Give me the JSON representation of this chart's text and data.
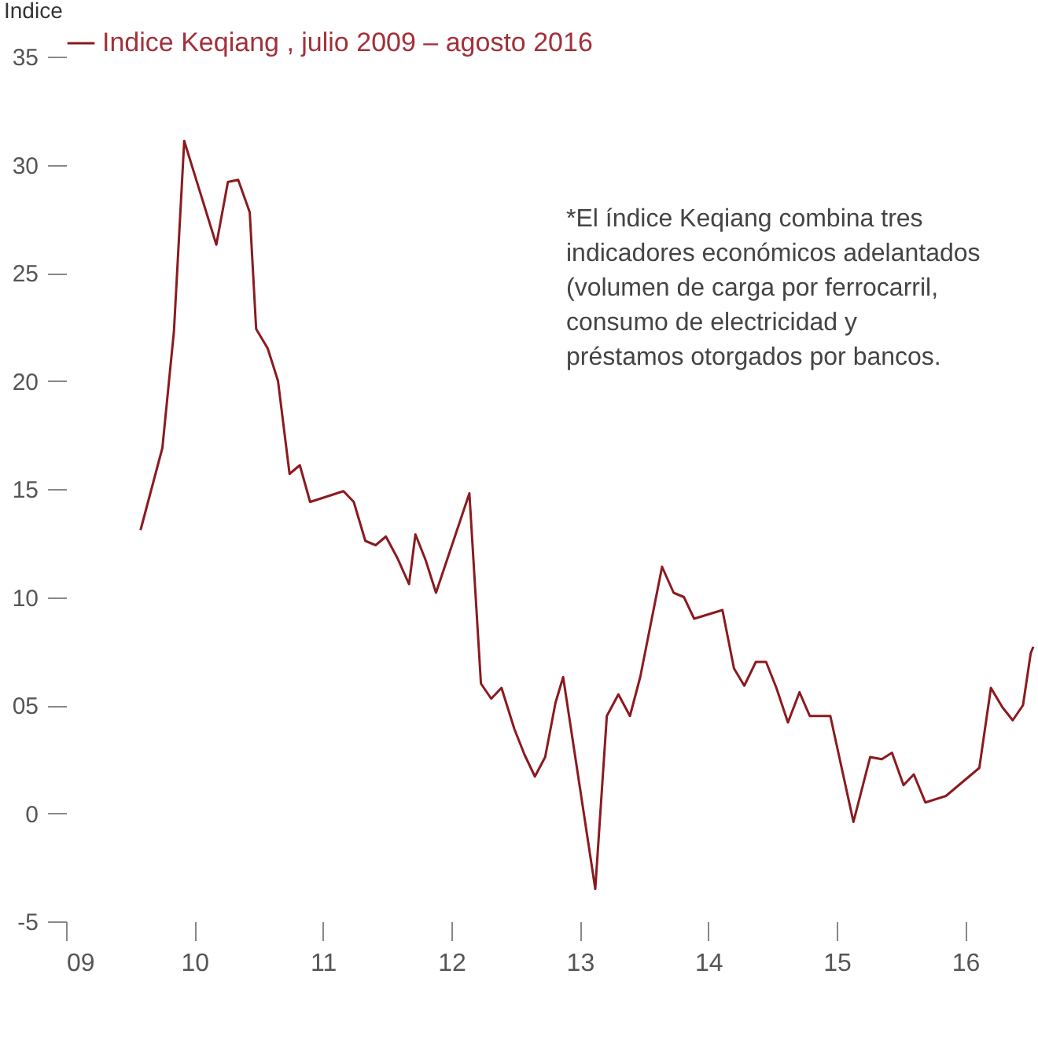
{
  "chart_data": {
    "type": "line",
    "ylabel": "Indice",
    "annotations": [
      "*El índice Keqiang combina tres\nindicadores económicos adelantados\n(volumen de carga por ferrocarril,\nconsumo de electricidad y\npréstamos otorgados por bancos."
    ],
    "xlim": [
      2009,
      2016.53
    ],
    "ylim": [
      -5,
      35
    ],
    "xticks": [
      {
        "value": 2009,
        "label": "09"
      },
      {
        "value": 2010,
        "label": "10"
      },
      {
        "value": 2011,
        "label": "11"
      },
      {
        "value": 2012,
        "label": "12"
      },
      {
        "value": 2013,
        "label": "13"
      },
      {
        "value": 2014,
        "label": "14"
      },
      {
        "value": 2015,
        "label": "15"
      },
      {
        "value": 2016,
        "label": "16"
      }
    ],
    "yticks": [
      -5,
      0,
      {
        "value": 5,
        "label": "05"
      },
      10,
      15,
      20,
      25,
      30,
      35
    ],
    "grid": false,
    "legend": "top",
    "marker": "none",
    "line_style": "solid",
    "series": [
      {
        "name": "Indice Keqiang , julio 2009 – agosto 2016",
        "color": "#8b1a1f",
        "x": [
          2009.58,
          2009.75,
          2009.84,
          2009.92,
          2010.17,
          2010.26,
          2010.34,
          2010.43,
          2010.48,
          2010.57,
          2010.65,
          2010.74,
          2010.82,
          2010.9,
          2011.16,
          2011.24,
          2011.33,
          2011.41,
          2011.49,
          2011.58,
          2011.67,
          2011.72,
          2011.8,
          2011.88,
          2012.14,
          2012.23,
          2012.31,
          2012.39,
          2012.49,
          2012.57,
          2012.65,
          2012.73,
          2012.81,
          2012.87,
          2013.12,
          2013.21,
          2013.3,
          2013.39,
          2013.47,
          2013.64,
          2013.73,
          2013.81,
          2013.89,
          2014.11,
          2014.2,
          2014.28,
          2014.37,
          2014.45,
          2014.53,
          2014.62,
          2014.71,
          2014.79,
          2014.95,
          2015.13,
          2015.26,
          2015.35,
          2015.43,
          2015.52,
          2015.6,
          2015.69,
          2015.85,
          2016.11,
          2016.2,
          2016.29,
          2016.37,
          2016.45,
          2016.51,
          2016.53
        ],
        "values": [
          13.1,
          16.9,
          22.3,
          31.1,
          26.3,
          29.2,
          29.3,
          27.8,
          22.4,
          21.5,
          20.0,
          15.7,
          16.1,
          14.4,
          14.9,
          14.4,
          12.6,
          12.4,
          12.8,
          11.8,
          10.6,
          12.9,
          11.7,
          10.2,
          14.8,
          6.0,
          5.3,
          5.8,
          3.9,
          2.7,
          1.7,
          2.6,
          5.1,
          6.3,
          -3.5,
          4.5,
          5.5,
          4.5,
          6.3,
          11.4,
          10.2,
          10.0,
          9.0,
          9.4,
          6.7,
          5.9,
          7.0,
          7.0,
          5.8,
          4.2,
          5.6,
          4.5,
          4.5,
          -0.4,
          2.6,
          2.5,
          2.8,
          1.3,
          1.8,
          0.5,
          0.8,
          2.1,
          5.8,
          4.9,
          4.3,
          5.0,
          7.4,
          7.7
        ]
      }
    ]
  }
}
